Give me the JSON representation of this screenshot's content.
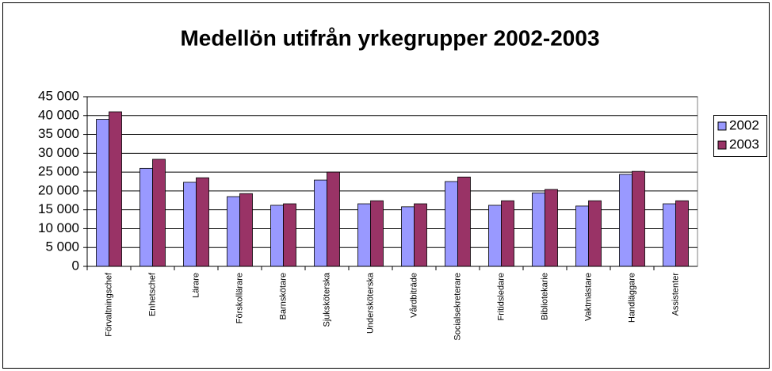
{
  "chart_data": {
    "type": "bar",
    "title": "Medellön utifrån yrkegrupper 2002-2003",
    "categories": [
      "Förvaltningschef",
      "Enhetschef",
      "Lärare",
      "Förskollärare",
      "Barnskötare",
      "Sjuksköterska",
      "Undersköterska",
      "Vårdbiträde",
      "Socialsekreterare",
      "Fritidsledare",
      "Bibliotekarie",
      "Vaktmästare",
      "Handläggare",
      "Assistenter"
    ],
    "series": [
      {
        "name": "2002",
        "color": "#9999ff",
        "values": [
          39000,
          26000,
          22300,
          18500,
          16200,
          22900,
          16600,
          15800,
          22500,
          16200,
          19500,
          16000,
          24400,
          16600
        ]
      },
      {
        "name": "2003",
        "color": "#993366",
        "values": [
          41000,
          28400,
          23500,
          19300,
          16600,
          25000,
          17400,
          16600,
          23700,
          17400,
          20400,
          17400,
          25200,
          17400
        ]
      }
    ],
    "ylim": [
      0,
      45000
    ],
    "yticks": [
      0,
      {
        "value": 5000,
        "label": "5 000"
      },
      {
        "value": 10000,
        "label": "10 000"
      },
      {
        "value": 15000,
        "label": "15 000"
      },
      {
        "value": 20000,
        "label": "20 000"
      },
      {
        "value": 25000,
        "label": "25 000"
      },
      {
        "value": 30000,
        "label": "30 000"
      },
      {
        "value": 35000,
        "label": "35 000"
      },
      {
        "value": 40000,
        "label": "40 000"
      },
      {
        "value": 45000,
        "label": "45 000"
      }
    ],
    "grid": true,
    "legend": "right"
  }
}
